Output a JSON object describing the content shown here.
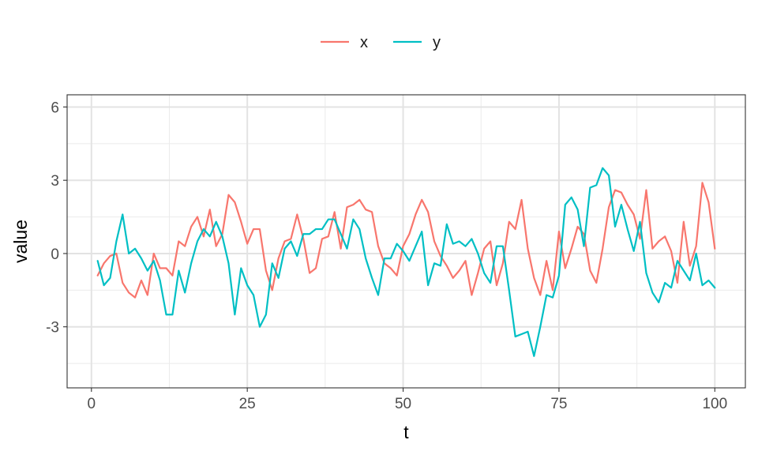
{
  "chart_data": {
    "type": "line",
    "title": "",
    "xlabel": "t",
    "ylabel": "value",
    "xlim": [
      -3.9,
      104.9
    ],
    "ylim": [
      -5.5,
      6.5
    ],
    "x_ticks": [
      0,
      25,
      50,
      75,
      100
    ],
    "x_tick_labels": [
      "0",
      "25",
      "50",
      "75",
      "100"
    ],
    "y_ticks": [
      -3,
      0,
      3,
      6
    ],
    "y_tick_labels": [
      "-3",
      "0",
      "3",
      "6"
    ],
    "grid": true,
    "legend_position": "top",
    "x": [
      1,
      2,
      3,
      4,
      5,
      6,
      7,
      8,
      9,
      10,
      11,
      12,
      13,
      14,
      15,
      16,
      17,
      18,
      19,
      20,
      21,
      22,
      23,
      24,
      25,
      26,
      27,
      28,
      29,
      30,
      31,
      32,
      33,
      34,
      35,
      36,
      37,
      38,
      39,
      40,
      41,
      42,
      43,
      44,
      45,
      46,
      47,
      48,
      49,
      50,
      51,
      52,
      53,
      54,
      55,
      56,
      57,
      58,
      59,
      60,
      61,
      62,
      63,
      64,
      65,
      66,
      67,
      68,
      69,
      70,
      71,
      72,
      73,
      74,
      75,
      76,
      77,
      78,
      79,
      80,
      81,
      82,
      83,
      84,
      85,
      86,
      87,
      88,
      89,
      90,
      91,
      92,
      93,
      94,
      95,
      96,
      97,
      98,
      99,
      100
    ],
    "series": [
      {
        "name": "x",
        "color": "#F8766D",
        "values": [
          -0.9,
          -0.4,
          -0.1,
          0.0,
          -1.2,
          -1.6,
          -1.8,
          -1.1,
          -1.7,
          0.0,
          -0.6,
          -0.6,
          -0.9,
          0.5,
          0.3,
          1.1,
          1.5,
          0.7,
          1.8,
          0.3,
          0.8,
          2.4,
          2.1,
          1.3,
          0.4,
          1.0,
          1.0,
          -0.7,
          -1.5,
          -0.2,
          0.5,
          0.6,
          1.6,
          0.6,
          -0.8,
          -0.6,
          0.6,
          0.7,
          1.7,
          0.2,
          1.9,
          2.0,
          2.2,
          1.8,
          1.7,
          0.3,
          -0.4,
          -0.6,
          -0.9,
          0.3,
          0.8,
          1.6,
          2.2,
          1.7,
          0.5,
          -0.1,
          -0.5,
          -1.0,
          -0.7,
          -0.3,
          -1.7,
          -0.8,
          0.2,
          0.5,
          -1.3,
          -0.4,
          1.3,
          1.0,
          2.2,
          0.2,
          -1.0,
          -1.7,
          -0.3,
          -1.5,
          0.9,
          -0.6,
          0.2,
          1.1,
          0.8,
          -0.7,
          -1.2,
          0.2,
          1.9,
          2.6,
          2.5,
          2.0,
          1.6,
          0.6,
          2.6,
          0.2,
          0.5,
          0.7,
          0.1,
          -1.2,
          1.3,
          -0.5,
          0.3,
          2.9,
          2.1,
          0.2
        ]
      },
      {
        "name": "y",
        "color": "#00BFC4",
        "values": [
          -0.3,
          -1.3,
          -1.0,
          0.5,
          1.6,
          0.0,
          0.2,
          -0.2,
          -0.7,
          -0.3,
          -1.1,
          -2.5,
          -2.5,
          -0.7,
          -1.6,
          -0.4,
          0.5,
          1.0,
          0.7,
          1.3,
          0.7,
          -0.4,
          -2.5,
          -0.6,
          -1.3,
          -1.7,
          -3.0,
          -2.5,
          -0.4,
          -1.0,
          0.2,
          0.5,
          -0.1,
          0.8,
          0.8,
          1.0,
          1.0,
          1.4,
          1.4,
          0.8,
          0.2,
          1.4,
          1.0,
          -0.2,
          -1.0,
          -1.7,
          -0.2,
          -0.2,
          0.4,
          0.1,
          -0.3,
          0.3,
          0.9,
          -1.3,
          -0.4,
          -0.5,
          1.2,
          0.4,
          0.5,
          0.3,
          0.6,
          0.0,
          -0.8,
          -1.2,
          0.3,
          0.3,
          -1.5,
          -3.4,
          -3.3,
          -3.2,
          -4.2,
          -3.0,
          -1.7,
          -1.8,
          -0.9,
          2.0,
          2.3,
          1.8,
          0.3,
          2.7,
          2.8,
          3.5,
          3.2,
          1.1,
          2.0,
          1.0,
          0.1,
          1.3,
          -0.8,
          -1.6,
          -2.0,
          -1.2,
          -1.4,
          -0.3,
          -0.7,
          -1.1,
          0.0,
          -1.3,
          -1.1,
          -1.4
        ]
      }
    ]
  }
}
